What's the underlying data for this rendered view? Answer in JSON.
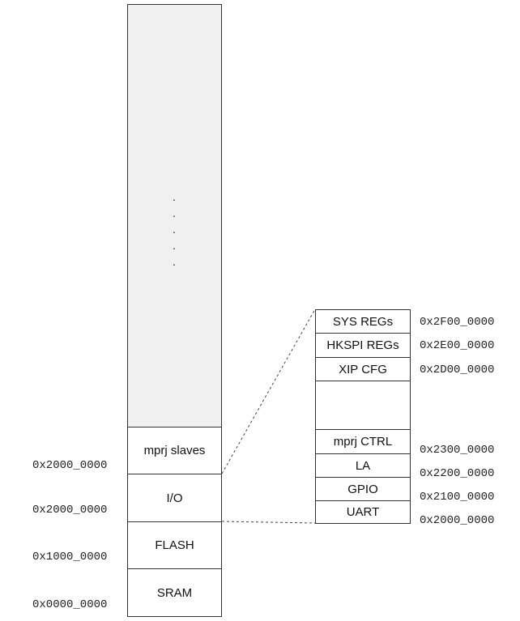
{
  "main_map": {
    "blocks": [
      {
        "label": ""
      },
      {
        "label": "mprj slaves"
      },
      {
        "label": "I/O"
      },
      {
        "label": "FLASH"
      },
      {
        "label": "SRAM"
      }
    ],
    "ellipsis": [
      ".",
      ".",
      ".",
      ".",
      "."
    ],
    "addresses": [
      "0x2000_0000",
      "0x2000_0000",
      "0x1000_0000",
      "0x0000_0000"
    ]
  },
  "io_detail": {
    "blocks": [
      {
        "label": "SYS REGs"
      },
      {
        "label": "HKSPI REGs"
      },
      {
        "label": "XIP CFG"
      },
      {
        "label": ""
      },
      {
        "label": "mprj CTRL"
      },
      {
        "label": "LA"
      },
      {
        "label": "GPIO"
      },
      {
        "label": "UART"
      }
    ],
    "addresses": [
      "0x2F00_0000",
      "0x2E00_0000",
      "0x2D00_0000",
      "0x2300_0000",
      "0x2200_0000",
      "0x2100_0000",
      "0x2000_0000"
    ]
  },
  "colors": {
    "gray_fill": "#f0f0f0",
    "border": "#333333"
  }
}
